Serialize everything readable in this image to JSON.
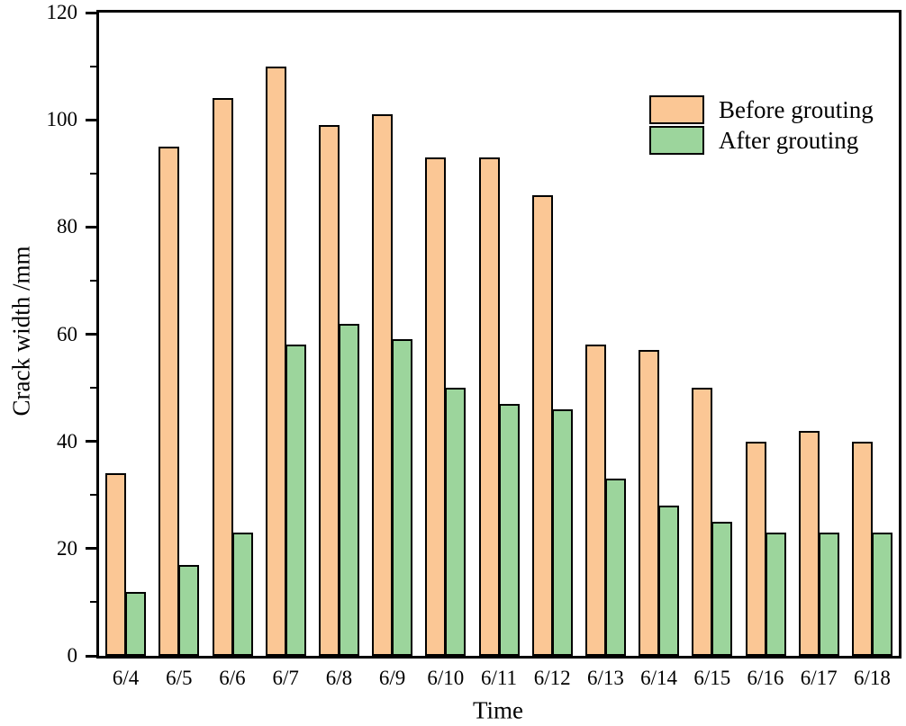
{
  "chart_data": {
    "type": "bar",
    "title": "",
    "xlabel": "Time",
    "ylabel": "Crack width /mm",
    "categories": [
      "6/4",
      "6/5",
      "6/6",
      "6/7",
      "6/8",
      "6/9",
      "6/10",
      "6/11",
      "6/12",
      "6/13",
      "6/14",
      "6/15",
      "6/16",
      "6/17",
      "6/18"
    ],
    "series": [
      {
        "name": "Before grouting",
        "color": "#FBC795",
        "values": [
          34,
          95,
          104,
          110,
          99,
          101,
          93,
          93,
          86,
          58,
          57,
          50,
          40,
          42,
          40
        ]
      },
      {
        "name": "After grouting",
        "color": "#9CD59C",
        "values": [
          12,
          17,
          23,
          58,
          62,
          59,
          50,
          47,
          46,
          33,
          28,
          25,
          23,
          23,
          23
        ]
      }
    ],
    "ylim": [
      0,
      120
    ],
    "y_major_ticks": [
      0,
      20,
      40,
      60,
      80,
      100,
      120
    ],
    "y_minor_ticks": [
      10,
      30,
      50,
      70,
      90,
      110
    ],
    "legend_position": "top-right",
    "grid": false,
    "bar_outline_color": "#000000",
    "axis_color": "#000000",
    "background_color": "#ffffff"
  }
}
